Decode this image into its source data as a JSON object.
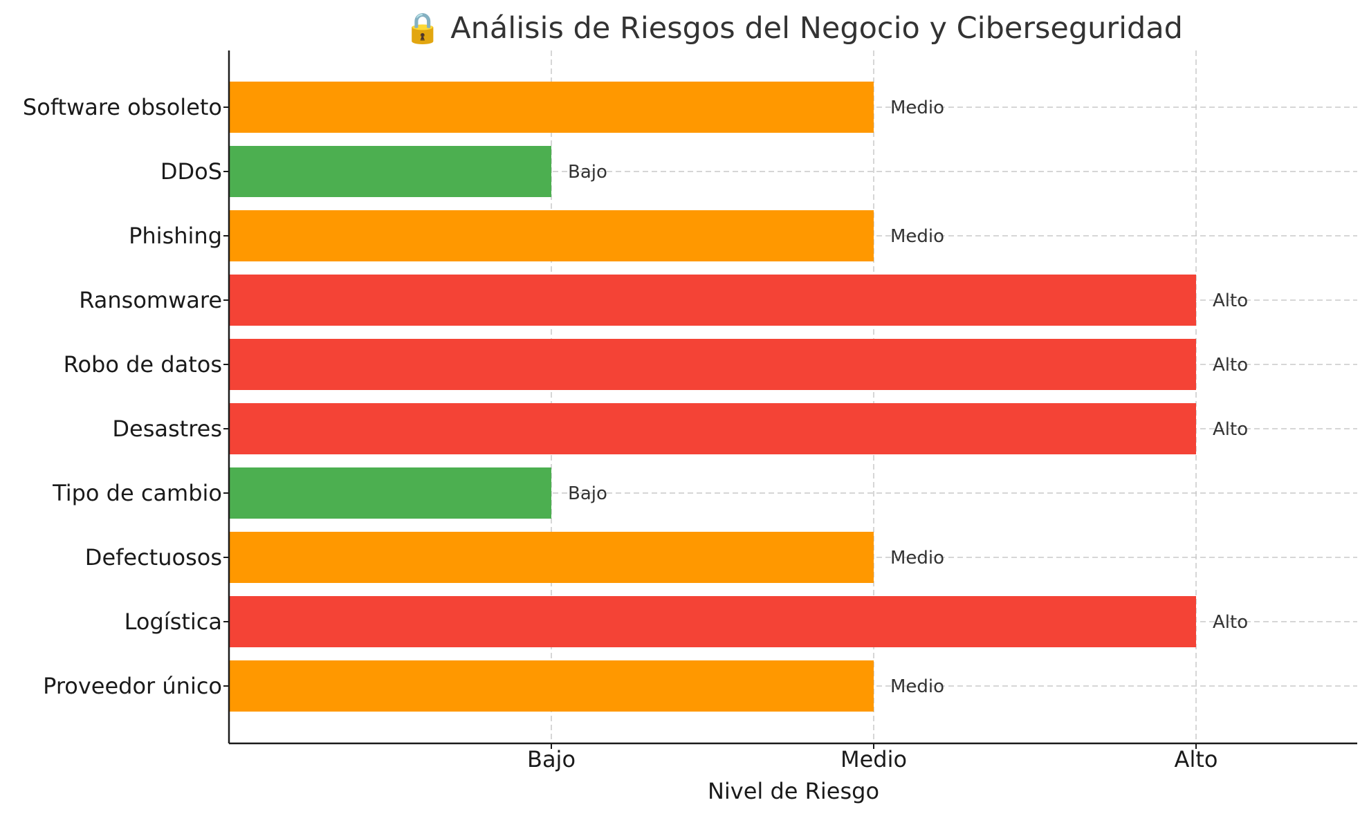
{
  "chart_data": {
    "type": "bar",
    "orientation": "horizontal",
    "title": "🔒 Análisis de Riesgos del Negocio y Ciberseguridad",
    "xlabel": "Nivel de Riesgo",
    "ylabel": "",
    "levels": [
      "Bajo",
      "Medio",
      "Alto"
    ],
    "xlim": [
      0,
      3.5
    ],
    "grid": true,
    "categories": [
      "Software obsoleto",
      "DDoS",
      "Phishing",
      "Ransomware",
      "Robo de datos",
      "Desastres",
      "Tipo de cambio",
      "Defectuosos",
      "Logística",
      "Proveedor único"
    ],
    "values": [
      2,
      1,
      2,
      3,
      3,
      3,
      1,
      2,
      3,
      2
    ],
    "value_labels": [
      "Medio",
      "Bajo",
      "Medio",
      "Alto",
      "Alto",
      "Alto",
      "Bajo",
      "Medio",
      "Alto",
      "Medio"
    ],
    "colors": {
      "Bajo": "#4caf50",
      "Medio": "#ff9800",
      "Alto": "#f44336"
    }
  }
}
